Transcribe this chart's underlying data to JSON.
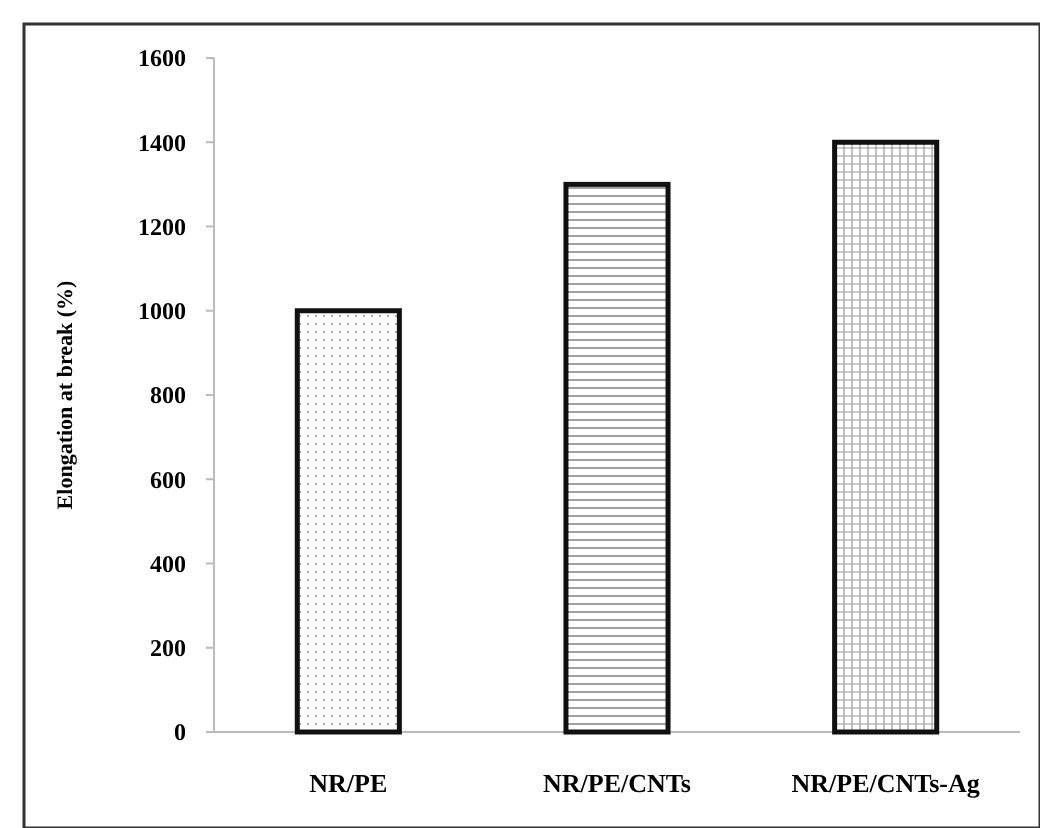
{
  "chart_data": {
    "type": "bar",
    "ylabel": "Elongation at break (%)",
    "categories": [
      "NR/PE",
      "NR/PE/CNTs",
      "NR/PE/CNTs-Ag"
    ],
    "values": [
      1000,
      1300,
      1400
    ],
    "ylim": [
      0,
      1600
    ],
    "yticks": [
      0,
      200,
      400,
      600,
      800,
      1000,
      1200,
      1400,
      1600
    ],
    "grid": false
  }
}
